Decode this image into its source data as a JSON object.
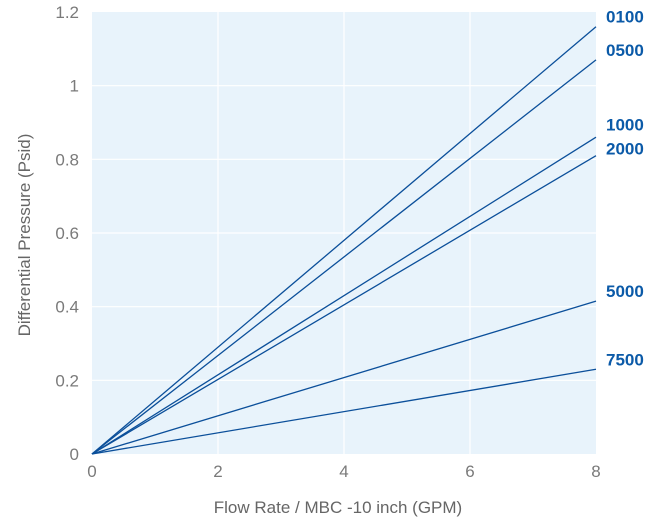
{
  "colors": {
    "plot_background": "#e8f3fb",
    "grid": "#ffffff",
    "series_line": "#0b4f9a",
    "series_label": "#0b5aa8",
    "tick_text": "#7a7a7a",
    "axis_title_text": "#666666"
  },
  "chart_data": {
    "type": "line",
    "title": "",
    "xlabel": "Flow Rate / MBC -10 inch (GPM)",
    "ylabel": "Differential Pressure (Psid)",
    "xlim": [
      0,
      8
    ],
    "ylim": [
      0,
      1.2
    ],
    "x_ticks": [
      "0",
      "2",
      "4",
      "6",
      "8"
    ],
    "y_ticks": [
      "0",
      "0.2",
      "0.4",
      "0.6",
      "0.8",
      "1",
      "1.2"
    ],
    "grid": true,
    "legend": "right-side line labels",
    "series": [
      {
        "name": "0100",
        "x": [
          0,
          8
        ],
        "y": [
          0,
          1.16
        ]
      },
      {
        "name": "0500",
        "x": [
          0,
          8
        ],
        "y": [
          0,
          1.07
        ]
      },
      {
        "name": "1000",
        "x": [
          0,
          8
        ],
        "y": [
          0,
          0.86
        ]
      },
      {
        "name": "2000",
        "x": [
          0,
          8
        ],
        "y": [
          0,
          0.81
        ]
      },
      {
        "name": "5000",
        "x": [
          0,
          8
        ],
        "y": [
          0,
          0.415
        ]
      },
      {
        "name": "7500",
        "x": [
          0,
          8
        ],
        "y": [
          0,
          0.23
        ]
      }
    ]
  }
}
